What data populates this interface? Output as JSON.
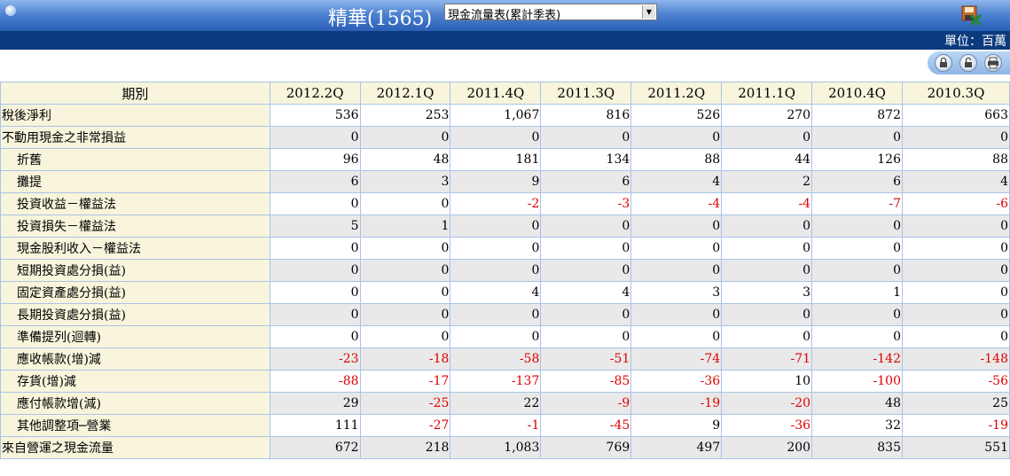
{
  "header": {
    "title": "精華(1565)",
    "report_select": "現金流量表(累計季表)"
  },
  "unit": "單位：百萬",
  "table": {
    "header_label": "期別",
    "periods": [
      "2012.2Q",
      "2012.1Q",
      "2011.4Q",
      "2011.3Q",
      "2011.2Q",
      "2011.1Q",
      "2010.4Q",
      "2010.3Q"
    ],
    "rows": [
      {
        "label": "稅後淨利",
        "indent": false,
        "values": [
          "536",
          "253",
          "1,067",
          "816",
          "526",
          "270",
          "872",
          "663"
        ]
      },
      {
        "label": "不動用現金之非常損益",
        "indent": false,
        "values": [
          "0",
          "0",
          "0",
          "0",
          "0",
          "0",
          "0",
          "0"
        ]
      },
      {
        "label": "折舊",
        "indent": true,
        "values": [
          "96",
          "48",
          "181",
          "134",
          "88",
          "44",
          "126",
          "88"
        ]
      },
      {
        "label": "攤提",
        "indent": true,
        "values": [
          "6",
          "3",
          "9",
          "6",
          "4",
          "2",
          "6",
          "4"
        ]
      },
      {
        "label": "投資收益－權益法",
        "indent": true,
        "values": [
          "0",
          "0",
          "-2",
          "-3",
          "-4",
          "-4",
          "-7",
          "-6"
        ]
      },
      {
        "label": "投資損失－權益法",
        "indent": true,
        "values": [
          "5",
          "1",
          "0",
          "0",
          "0",
          "0",
          "0",
          "0"
        ]
      },
      {
        "label": "現金股利收入－權益法",
        "indent": true,
        "values": [
          "0",
          "0",
          "0",
          "0",
          "0",
          "0",
          "0",
          "0"
        ]
      },
      {
        "label": "短期投資處分損(益)",
        "indent": true,
        "values": [
          "0",
          "0",
          "0",
          "0",
          "0",
          "0",
          "0",
          "0"
        ]
      },
      {
        "label": "固定資產處分損(益)",
        "indent": true,
        "values": [
          "0",
          "0",
          "4",
          "4",
          "3",
          "3",
          "1",
          "0"
        ]
      },
      {
        "label": "長期投資處分損(益)",
        "indent": true,
        "values": [
          "0",
          "0",
          "0",
          "0",
          "0",
          "0",
          "0",
          "0"
        ]
      },
      {
        "label": "準備提列(迴轉)",
        "indent": true,
        "values": [
          "0",
          "0",
          "0",
          "0",
          "0",
          "0",
          "0",
          "0"
        ]
      },
      {
        "label": "應收帳款(增)減",
        "indent": true,
        "values": [
          "-23",
          "-18",
          "-58",
          "-51",
          "-74",
          "-71",
          "-142",
          "-148"
        ]
      },
      {
        "label": "存貨(增)減",
        "indent": true,
        "values": [
          "-88",
          "-17",
          "-137",
          "-85",
          "-36",
          "10",
          "-100",
          "-56"
        ]
      },
      {
        "label": "應付帳款增(減)",
        "indent": true,
        "values": [
          "29",
          "-25",
          "22",
          "-9",
          "-19",
          "-20",
          "48",
          "25"
        ]
      },
      {
        "label": "其他調整項─營業",
        "indent": true,
        "values": [
          "111",
          "-27",
          "-1",
          "-45",
          "9",
          "-36",
          "32",
          "-19"
        ]
      },
      {
        "label": "來自營運之現金流量",
        "indent": false,
        "values": [
          "672",
          "218",
          "1,083",
          "769",
          "497",
          "200",
          "835",
          "551"
        ]
      }
    ]
  },
  "colors": {
    "header_top": "#8fb6ec",
    "header_bottom": "#2a5fb6",
    "unit_bar": "#0c3a7e",
    "label_bg": "#f8f5dc",
    "shaded_row": "#e9e9e9",
    "negative": "#e00000",
    "border": "#a9c4e6"
  },
  "icons": [
    "save-to-excel-icon",
    "lock-icon",
    "unlock-icon",
    "print-icon"
  ]
}
